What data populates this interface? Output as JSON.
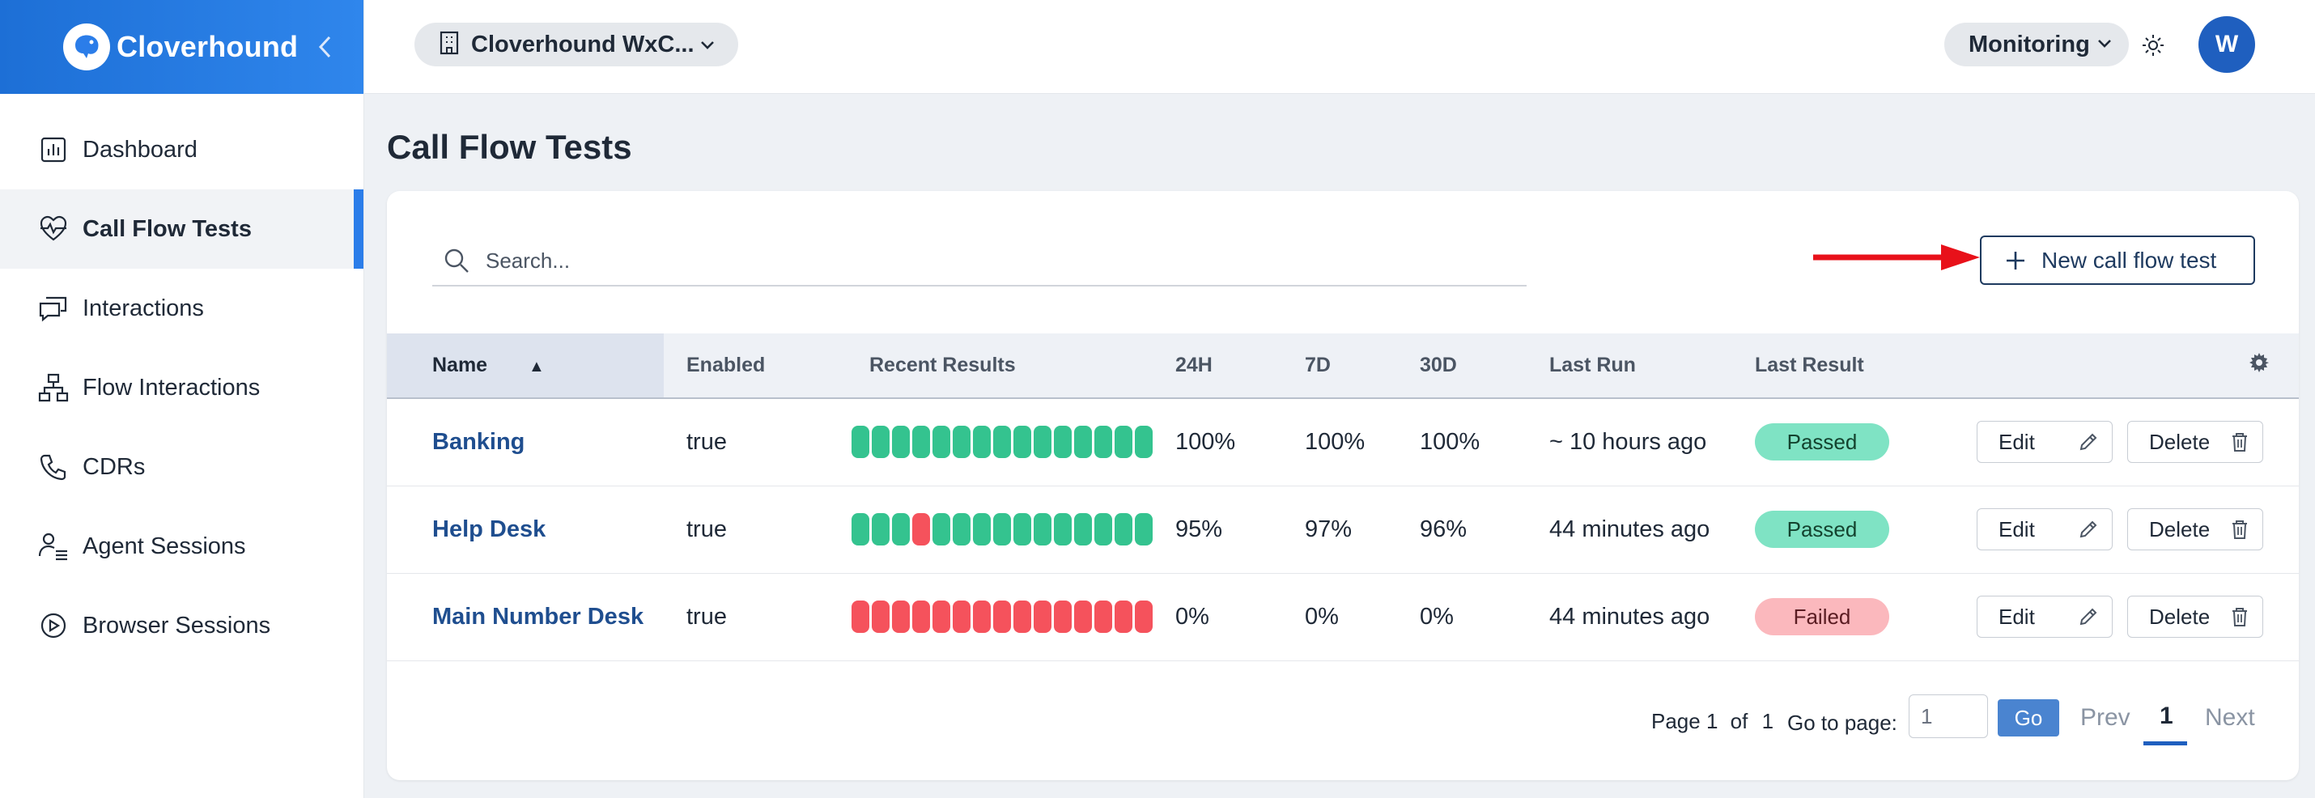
{
  "brand": {
    "name": "Cloverhound"
  },
  "sidebar": {
    "items": [
      {
        "label": "Dashboard",
        "icon": "chart-icon",
        "active": false
      },
      {
        "label": "Call Flow Tests",
        "icon": "heart-pulse-icon",
        "active": true
      },
      {
        "label": "Interactions",
        "icon": "chat-bubbles-icon",
        "active": false
      },
      {
        "label": "Flow Interactions",
        "icon": "hierarchy-icon",
        "active": false
      },
      {
        "label": "CDRs",
        "icon": "phone-icon",
        "active": false
      },
      {
        "label": "Agent Sessions",
        "icon": "agent-list-icon",
        "active": false
      },
      {
        "label": "Browser Sessions",
        "icon": "play-circle-icon",
        "active": false
      }
    ]
  },
  "topbar": {
    "org": "Cloverhound WxC...",
    "mode": "Monitoring",
    "avatar": "W"
  },
  "page": {
    "title": "Call Flow Tests",
    "search_placeholder": "Search...",
    "new_button": "New call flow test"
  },
  "table": {
    "columns": {
      "name": "Name",
      "enabled": "Enabled",
      "recent": "Recent Results",
      "h24": "24H",
      "d7": "7D",
      "d30": "30D",
      "last_run": "Last Run",
      "last_result": "Last Result"
    },
    "rows": [
      {
        "name": "Banking",
        "enabled": "true",
        "recent": [
          "pass",
          "pass",
          "pass",
          "pass",
          "pass",
          "pass",
          "pass",
          "pass",
          "pass",
          "pass",
          "pass",
          "pass",
          "pass",
          "pass",
          "pass"
        ],
        "h24": "100%",
        "d7": "100%",
        "d30": "100%",
        "last_run": "~ 10 hours ago",
        "last_result": "Passed",
        "status": "passed",
        "edit": "Edit",
        "delete": "Delete"
      },
      {
        "name": "Help Desk",
        "enabled": "true",
        "recent": [
          "pass",
          "pass",
          "pass",
          "fail",
          "pass",
          "pass",
          "pass",
          "pass",
          "pass",
          "pass",
          "pass",
          "pass",
          "pass",
          "pass",
          "pass"
        ],
        "h24": "95%",
        "d7": "97%",
        "d30": "96%",
        "last_run": "44 minutes ago",
        "last_result": "Passed",
        "status": "passed",
        "edit": "Edit",
        "delete": "Delete"
      },
      {
        "name": "Main Number Desk",
        "enabled": "true",
        "recent": [
          "fail",
          "fail",
          "fail",
          "fail",
          "fail",
          "fail",
          "fail",
          "fail",
          "fail",
          "fail",
          "fail",
          "fail",
          "fail",
          "fail",
          "fail"
        ],
        "h24": "0%",
        "d7": "0%",
        "d30": "0%",
        "last_run": "44 minutes ago",
        "last_result": "Failed",
        "status": "failed",
        "edit": "Edit",
        "delete": "Delete"
      }
    ]
  },
  "pagination": {
    "page_label": "Page",
    "current": "1",
    "of_label": "of",
    "total": "1",
    "goto_label": "Go to page:",
    "goto_value": "1",
    "go": "Go",
    "prev": "Prev",
    "next": "Next"
  },
  "colors": {
    "pass": "#34c38f",
    "fail": "#f5525c",
    "accent": "#2b7de9"
  }
}
